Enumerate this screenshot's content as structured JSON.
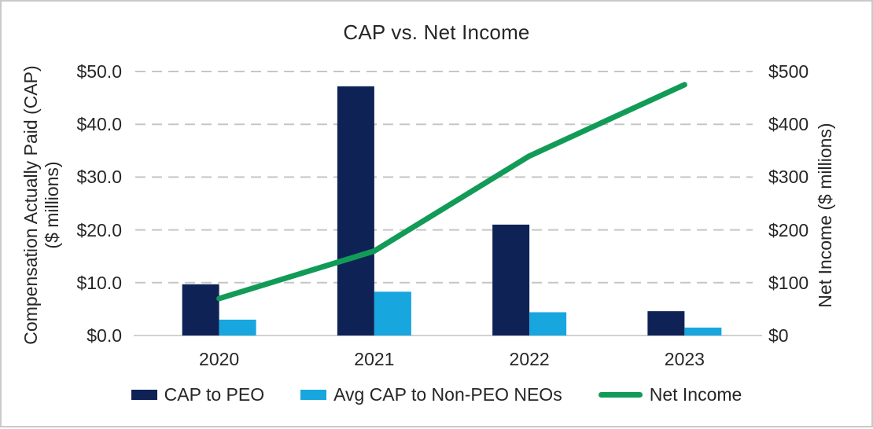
{
  "colors": {
    "grid": "#c6c6c6",
    "axis_line": "#d2d2d2",
    "text": "#262626",
    "border": "#c9c9c9",
    "background": "#ffffff"
  },
  "chart_data": {
    "type": "combo",
    "title": "CAP vs. Net Income",
    "categories": [
      "2020",
      "2021",
      "2022",
      "2023"
    ],
    "series": [
      {
        "name": "CAP to PEO",
        "type": "bar",
        "axis": "left",
        "color": "#0e2255",
        "values": [
          9.7,
          47.2,
          21.0,
          4.6
        ]
      },
      {
        "name": "Avg CAP to Non-PEO NEOs",
        "type": "bar",
        "axis": "left",
        "color": "#18a6df",
        "values": [
          3.0,
          8.3,
          4.4,
          1.5
        ]
      },
      {
        "name": "Net Income",
        "type": "line",
        "axis": "right",
        "color": "#119b57",
        "values": [
          70,
          160,
          340,
          475
        ]
      }
    ],
    "left_axis": {
      "title_line1": "Compensation Actually Paid (CAP)",
      "title_line2": "($ millions)",
      "ticks": [
        "$0.0",
        "$10.0",
        "$20.0",
        "$30.0",
        "$40.0",
        "$50.0"
      ],
      "range": [
        0,
        50
      ],
      "tick_step": 10
    },
    "right_axis": {
      "title": "Net Income ($ millions)",
      "ticks": [
        "$0",
        "$100",
        "$200",
        "$300",
        "$400",
        "$500"
      ],
      "range": [
        0,
        500
      ],
      "tick_step": 100
    },
    "grid": "horizontal dashed",
    "legend_position": "bottom"
  }
}
